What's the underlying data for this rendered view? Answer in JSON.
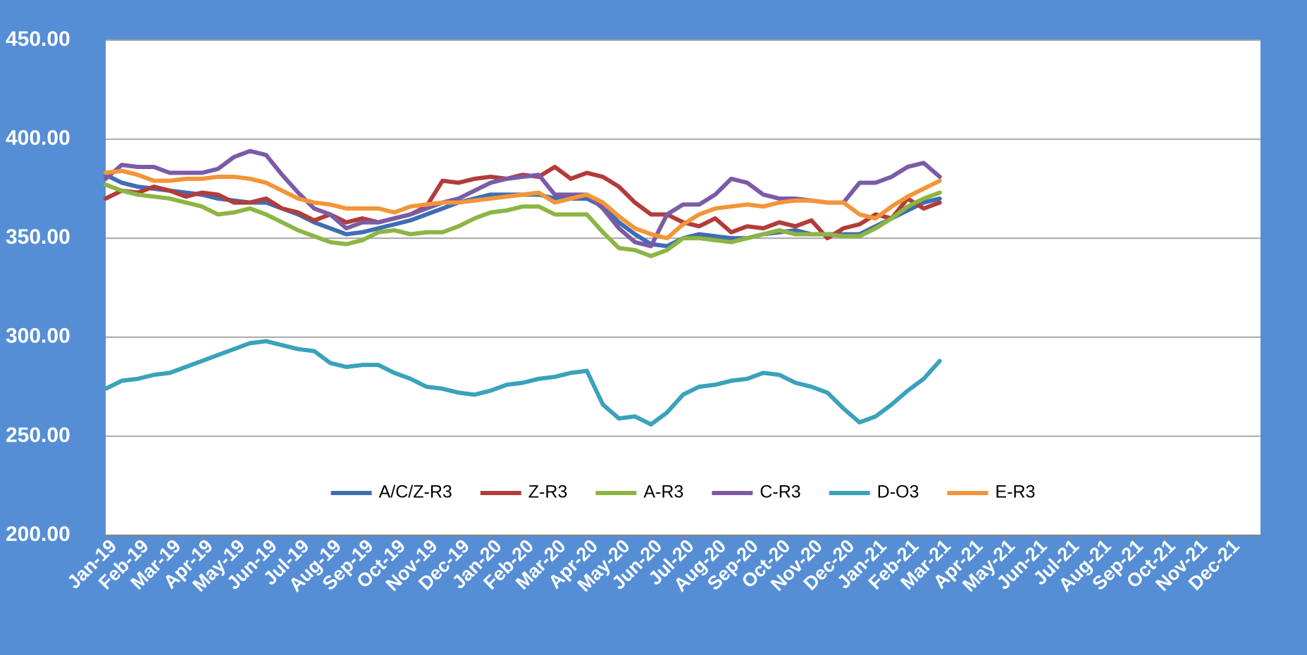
{
  "chart_data": {
    "type": "line",
    "x": [
      0,
      0.5,
      1,
      1.5,
      2,
      2.5,
      3,
      3.5,
      4,
      4.5,
      5,
      5.5,
      6,
      6.5,
      7,
      7.5,
      8,
      8.5,
      9,
      9.5,
      10,
      10.5,
      11,
      11.5,
      12,
      12.5,
      13,
      13.5,
      14,
      14.5,
      15,
      15.5,
      16,
      16.5,
      17,
      17.5,
      18,
      18.5,
      19,
      19.5,
      20,
      20.5,
      21,
      21.5,
      22,
      22.5,
      23,
      23.5,
      24,
      24.5,
      25,
      25.5,
      26
    ],
    "xlim": [
      0,
      36
    ],
    "xticks": [
      {
        "value": 0,
        "label": "Jan-19"
      },
      {
        "value": 1,
        "label": "Feb-19"
      },
      {
        "value": 2,
        "label": "Mar-19"
      },
      {
        "value": 3,
        "label": "Apr-19"
      },
      {
        "value": 4,
        "label": "May-19"
      },
      {
        "value": 5,
        "label": "Jun-19"
      },
      {
        "value": 6,
        "label": "Jul-19"
      },
      {
        "value": 7,
        "label": "Aug-19"
      },
      {
        "value": 8,
        "label": "Sep-19"
      },
      {
        "value": 9,
        "label": "Oct-19"
      },
      {
        "value": 10,
        "label": "Nov-19"
      },
      {
        "value": 11,
        "label": "Dec-19"
      },
      {
        "value": 12,
        "label": "Jan-20"
      },
      {
        "value": 13,
        "label": "Feb-20"
      },
      {
        "value": 14,
        "label": "Mar-20"
      },
      {
        "value": 15,
        "label": "Apr-20"
      },
      {
        "value": 16,
        "label": "May-20"
      },
      {
        "value": 17,
        "label": "Jun-20"
      },
      {
        "value": 18,
        "label": "Jul-20"
      },
      {
        "value": 19,
        "label": "Aug-20"
      },
      {
        "value": 20,
        "label": "Sep-20"
      },
      {
        "value": 21,
        "label": "Oct-20"
      },
      {
        "value": 22,
        "label": "Nov-20"
      },
      {
        "value": 23,
        "label": "Dec-20"
      },
      {
        "value": 24,
        "label": "Jan-21"
      },
      {
        "value": 25,
        "label": "Feb-21"
      },
      {
        "value": 26,
        "label": "Mar-21"
      },
      {
        "value": 27,
        "label": "Apr-21"
      },
      {
        "value": 28,
        "label": "May-21"
      },
      {
        "value": 29,
        "label": "Jun-21"
      },
      {
        "value": 30,
        "label": "Jul-21"
      },
      {
        "value": 31,
        "label": "Aug-21"
      },
      {
        "value": 32,
        "label": "Sep-21"
      },
      {
        "value": 33,
        "label": "Oct-21"
      },
      {
        "value": 34,
        "label": "Nov-21"
      },
      {
        "value": 35,
        "label": "Dec-21"
      }
    ],
    "ylim": [
      200,
      450
    ],
    "yticks": [
      {
        "value": 200,
        "label": "200.00"
      },
      {
        "value": 250,
        "label": "250.00"
      },
      {
        "value": 300,
        "label": "300.00"
      },
      {
        "value": 350,
        "label": "350.00"
      },
      {
        "value": 400,
        "label": "400.00"
      },
      {
        "value": 450,
        "label": "450.00"
      }
    ],
    "grid": true,
    "legend": "bottom",
    "series": [
      {
        "name": "A/C/Z-R3",
        "color": "#3f6db3",
        "values": [
          382,
          378,
          376,
          375,
          374,
          373,
          372,
          370,
          369,
          368,
          368,
          365,
          362,
          358,
          355,
          352,
          353,
          355,
          357,
          359,
          362,
          365,
          368,
          370,
          372,
          372,
          372,
          372,
          370,
          370,
          370,
          366,
          358,
          352,
          347,
          346,
          350,
          352,
          351,
          350,
          350,
          352,
          353,
          354,
          352,
          352,
          352,
          352,
          356,
          360,
          364,
          368,
          370
        ]
      },
      {
        "name": "Z-R3",
        "color": "#b23c3a",
        "values": [
          370,
          374,
          373,
          376,
          374,
          371,
          373,
          372,
          368,
          368,
          370,
          365,
          363,
          359,
          362,
          358,
          360,
          358,
          360,
          362,
          366,
          379,
          378,
          380,
          381,
          380,
          382,
          381,
          386,
          380,
          383,
          381,
          376,
          368,
          362,
          362,
          358,
          356,
          360,
          353,
          356,
          355,
          358,
          356,
          359,
          350,
          355,
          357,
          362,
          360,
          370,
          365,
          368
        ]
      },
      {
        "name": "A-R3",
        "color": "#8cb543",
        "values": [
          377,
          374,
          372,
          371,
          370,
          368,
          366,
          362,
          363,
          365,
          362,
          358,
          354,
          351,
          348,
          347,
          349,
          353,
          354,
          352,
          353,
          353,
          356,
          360,
          363,
          364,
          366,
          366,
          362,
          362,
          362,
          353,
          345,
          344,
          341,
          344,
          350,
          350,
          349,
          348,
          350,
          352,
          354,
          352,
          352,
          352,
          351,
          351,
          355,
          360,
          366,
          370,
          373
        ]
      },
      {
        "name": "C-R3",
        "color": "#7b5ba6",
        "values": [
          380,
          387,
          386,
          386,
          383,
          383,
          383,
          385,
          391,
          394,
          392,
          382,
          373,
          365,
          362,
          355,
          358,
          358,
          360,
          362,
          365,
          368,
          370,
          374,
          378,
          380,
          381,
          382,
          372,
          372,
          372,
          365,
          355,
          348,
          346,
          362,
          367,
          367,
          372,
          380,
          378,
          372,
          370,
          370,
          369,
          368,
          368,
          378,
          378,
          381,
          386,
          388,
          381
        ]
      },
      {
        "name": "D-O3",
        "color": "#3aa2bb",
        "values": [
          274,
          278,
          279,
          281,
          282,
          285,
          288,
          291,
          294,
          297,
          298,
          296,
          294,
          293,
          287,
          285,
          286,
          286,
          282,
          279,
          275,
          274,
          272,
          271,
          273,
          276,
          277,
          279,
          280,
          282,
          283,
          266,
          259,
          260,
          256,
          262,
          271,
          275,
          276,
          278,
          279,
          282,
          281,
          277,
          275,
          272,
          264,
          257,
          260,
          266,
          273,
          279,
          288
        ]
      },
      {
        "name": "E-R3",
        "color": "#f39538",
        "values": [
          383,
          384,
          382,
          379,
          379,
          380,
          380,
          381,
          381,
          380,
          378,
          374,
          370,
          368,
          367,
          365,
          365,
          365,
          363,
          366,
          367,
          368,
          368,
          369,
          370,
          371,
          372,
          373,
          368,
          370,
          372,
          368,
          361,
          355,
          352,
          350,
          357,
          362,
          365,
          366,
          367,
          366,
          368,
          369,
          369,
          368,
          368,
          362,
          360,
          366,
          371,
          375,
          379
        ]
      }
    ]
  }
}
